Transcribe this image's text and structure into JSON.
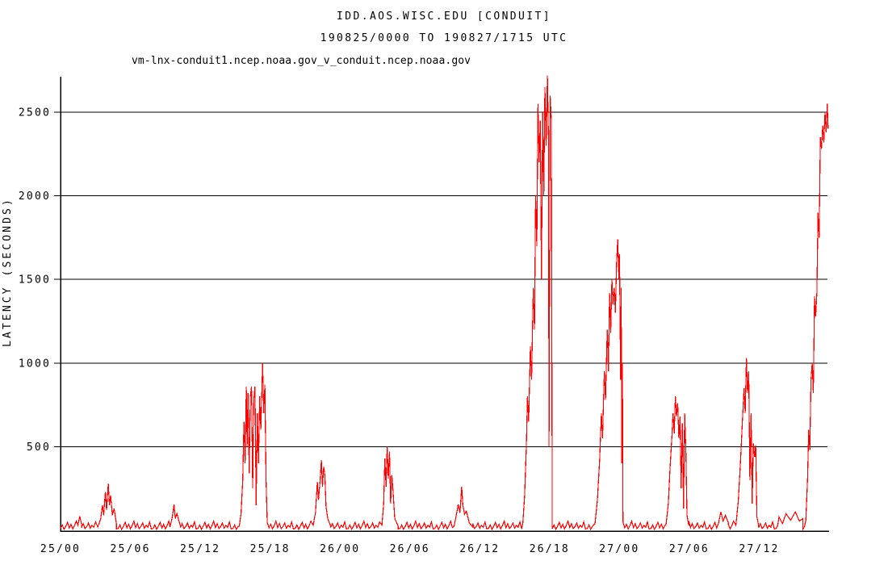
{
  "chart_data": {
    "type": "line",
    "title": "IDD.AOS.WISC.EDU [CONDUIT]",
    "subtitle": "190825/0000 TO 190827/1715 UTC",
    "legend": "vm-lnx-conduit1.ncep.noaa.gov_v_conduit.ncep.noaa.gov",
    "ylabel": "LATENCY (SECONDS)",
    "x_unit": "hours since 190825/0000 UTC",
    "xlim": [
      0,
      66
    ],
    "ylim": [
      0,
      2720
    ],
    "grid": "horizontal-only",
    "legend_position": "top-left",
    "yticks": [
      500,
      1000,
      1500,
      2000,
      2500
    ],
    "xtick_hours": [
      0,
      6,
      12,
      18,
      24,
      30,
      36,
      42,
      48,
      54,
      60
    ],
    "xtick_labels": [
      "25/00",
      "25/06",
      "25/12",
      "25/18",
      "26/00",
      "26/06",
      "26/12",
      "26/18",
      "27/00",
      "27/06",
      "27/12"
    ],
    "line_color": "#ff0000",
    "axis_color": "#000000",
    "baseline_noise": {
      "step_hours": 0.15,
      "pattern": [
        10,
        32,
        6,
        24,
        48,
        14,
        36,
        8,
        28,
        55,
        16,
        40,
        10,
        22,
        44,
        12,
        30,
        18,
        50,
        8
      ]
    },
    "spikes": [
      {
        "name": "bump-25-0130",
        "points": [
          [
            1.5,
            30
          ],
          [
            1.65,
            85
          ],
          [
            1.8,
            35
          ]
        ]
      },
      {
        "name": "spike-25-04",
        "points": [
          [
            3.2,
            20
          ],
          [
            3.45,
            70
          ],
          [
            3.6,
            150
          ],
          [
            3.7,
            90
          ],
          [
            3.85,
            230
          ],
          [
            3.95,
            120
          ],
          [
            4.1,
            280
          ],
          [
            4.2,
            150
          ],
          [
            4.3,
            210
          ],
          [
            4.45,
            90
          ],
          [
            4.6,
            130
          ],
          [
            4.8,
            40
          ]
        ]
      },
      {
        "name": "bump-25-10",
        "points": [
          [
            9.4,
            20
          ],
          [
            9.6,
            80
          ],
          [
            9.75,
            155
          ],
          [
            9.85,
            70
          ],
          [
            10.0,
            100
          ],
          [
            10.15,
            60
          ],
          [
            10.3,
            25
          ]
        ]
      },
      {
        "name": "spike-25-16",
        "points": [
          [
            15.35,
            25
          ],
          [
            15.5,
            100
          ],
          [
            15.65,
            300
          ],
          [
            15.75,
            650
          ],
          [
            15.85,
            400
          ],
          [
            15.95,
            860
          ],
          [
            16.02,
            500
          ],
          [
            16.1,
            820
          ],
          [
            16.2,
            340
          ],
          [
            16.3,
            800
          ],
          [
            16.4,
            860
          ],
          [
            16.5,
            250
          ],
          [
            16.6,
            780
          ],
          [
            16.7,
            860
          ],
          [
            16.8,
            150
          ],
          [
            16.9,
            700
          ],
          [
            17.0,
            400
          ],
          [
            17.1,
            800
          ],
          [
            17.2,
            600
          ],
          [
            17.35,
            1000
          ],
          [
            17.45,
            700
          ],
          [
            17.55,
            870
          ],
          [
            17.65,
            300
          ],
          [
            17.75,
            50
          ]
        ]
      },
      {
        "name": "spike-25-22",
        "points": [
          [
            21.7,
            30
          ],
          [
            21.9,
            110
          ],
          [
            22.05,
            290
          ],
          [
            22.15,
            180
          ],
          [
            22.3,
            310
          ],
          [
            22.4,
            420
          ],
          [
            22.5,
            260
          ],
          [
            22.6,
            380
          ],
          [
            22.7,
            330
          ],
          [
            22.8,
            140
          ],
          [
            22.95,
            70
          ],
          [
            23.2,
            25
          ]
        ]
      },
      {
        "name": "spike-26-04",
        "points": [
          [
            27.6,
            30
          ],
          [
            27.75,
            160
          ],
          [
            27.85,
            430
          ],
          [
            27.95,
            260
          ],
          [
            28.05,
            500
          ],
          [
            28.15,
            310
          ],
          [
            28.25,
            470
          ],
          [
            28.35,
            160
          ],
          [
            28.45,
            330
          ],
          [
            28.55,
            240
          ],
          [
            28.7,
            70
          ],
          [
            29.0,
            25
          ]
        ]
      },
      {
        "name": "bump-26-10",
        "points": [
          [
            33.8,
            25
          ],
          [
            34.0,
            95
          ],
          [
            34.15,
            155
          ],
          [
            34.3,
            105
          ],
          [
            34.45,
            260
          ],
          [
            34.55,
            150
          ],
          [
            34.7,
            95
          ],
          [
            34.85,
            115
          ],
          [
            35.1,
            45
          ],
          [
            35.4,
            20
          ]
        ]
      },
      {
        "name": "spike-26-17-max",
        "points": [
          [
            39.7,
            40
          ],
          [
            39.85,
            200
          ],
          [
            40.0,
            500
          ],
          [
            40.1,
            800
          ],
          [
            40.2,
            650
          ],
          [
            40.35,
            1100
          ],
          [
            40.45,
            900
          ],
          [
            40.6,
            1450
          ],
          [
            40.7,
            1200
          ],
          [
            40.8,
            2000
          ],
          [
            40.9,
            1700
          ],
          [
            41.0,
            2550
          ],
          [
            41.1,
            2200
          ],
          [
            41.2,
            2450
          ],
          [
            41.3,
            1500
          ],
          [
            41.4,
            2500
          ],
          [
            41.5,
            2000
          ],
          [
            41.6,
            2650
          ],
          [
            41.7,
            2300
          ],
          [
            41.81,
            2720
          ],
          [
            41.9,
            2350
          ],
          [
            41.95,
            500
          ],
          [
            42.05,
            2600
          ],
          [
            42.15,
            2450
          ],
          [
            42.23,
            30
          ]
        ]
      },
      {
        "name": "spike-27-00",
        "points": [
          [
            45.9,
            40
          ],
          [
            46.1,
            180
          ],
          [
            46.3,
            420
          ],
          [
            46.45,
            700
          ],
          [
            46.55,
            550
          ],
          [
            46.7,
            950
          ],
          [
            46.8,
            780
          ],
          [
            46.95,
            1200
          ],
          [
            47.05,
            950
          ],
          [
            47.15,
            1420
          ],
          [
            47.25,
            1180
          ],
          [
            47.35,
            1500
          ],
          [
            47.45,
            1350
          ],
          [
            47.55,
            1450
          ],
          [
            47.65,
            1300
          ],
          [
            47.75,
            1600
          ],
          [
            47.85,
            1740
          ],
          [
            47.95,
            1500
          ],
          [
            48.0,
            1650
          ],
          [
            48.1,
            900
          ],
          [
            48.15,
            1450
          ],
          [
            48.2,
            400
          ],
          [
            48.25,
            1000
          ],
          [
            48.3,
            50
          ]
        ]
      },
      {
        "name": "spike-27-05",
        "points": [
          [
            52.0,
            35
          ],
          [
            52.2,
            160
          ],
          [
            52.35,
            380
          ],
          [
            52.5,
            560
          ],
          [
            52.6,
            700
          ],
          [
            52.7,
            580
          ],
          [
            52.8,
            800
          ],
          [
            52.9,
            680
          ],
          [
            53.0,
            760
          ],
          [
            53.1,
            550
          ],
          [
            53.2,
            680
          ],
          [
            53.3,
            250
          ],
          [
            53.4,
            640
          ],
          [
            53.5,
            130
          ],
          [
            53.6,
            700
          ],
          [
            53.7,
            480
          ],
          [
            53.8,
            90
          ],
          [
            53.95,
            30
          ]
        ]
      },
      {
        "name": "bumps-27-08",
        "points": [
          [
            56.5,
            40
          ],
          [
            56.7,
            110
          ],
          [
            56.9,
            55
          ],
          [
            57.1,
            90
          ],
          [
            57.35,
            45
          ]
        ]
      },
      {
        "name": "spike-27-10",
        "points": [
          [
            58.0,
            30
          ],
          [
            58.2,
            170
          ],
          [
            58.4,
            420
          ],
          [
            58.55,
            640
          ],
          [
            58.7,
            850
          ],
          [
            58.8,
            700
          ],
          [
            58.9,
            1030
          ],
          [
            59.0,
            820
          ],
          [
            59.1,
            950
          ],
          [
            59.2,
            300
          ],
          [
            59.3,
            700
          ],
          [
            59.4,
            160
          ],
          [
            59.5,
            520
          ],
          [
            59.6,
            440
          ],
          [
            59.7,
            510
          ],
          [
            59.8,
            80
          ],
          [
            59.95,
            30
          ]
        ]
      },
      {
        "name": "bumps-27-14",
        "points": [
          [
            61.7,
            80
          ],
          [
            62.0,
            40
          ],
          [
            62.3,
            100
          ],
          [
            62.7,
            60
          ],
          [
            63.1,
            110
          ],
          [
            63.45,
            55
          ],
          [
            63.75,
            70
          ]
        ]
      },
      {
        "name": "rise-27-17-end",
        "points": [
          [
            64.0,
            60
          ],
          [
            64.15,
            300
          ],
          [
            64.25,
            600
          ],
          [
            64.35,
            480
          ],
          [
            64.45,
            900
          ],
          [
            64.55,
            1000
          ],
          [
            64.65,
            820
          ],
          [
            64.75,
            1400
          ],
          [
            64.85,
            1280
          ],
          [
            64.95,
            1420
          ],
          [
            65.05,
            1900
          ],
          [
            65.15,
            1750
          ],
          [
            65.25,
            2350
          ],
          [
            65.35,
            2280
          ],
          [
            65.45,
            2420
          ],
          [
            65.55,
            2320
          ],
          [
            65.65,
            2500
          ],
          [
            65.75,
            2380
          ],
          [
            65.85,
            2550
          ],
          [
            65.92,
            2400
          ]
        ]
      }
    ]
  }
}
